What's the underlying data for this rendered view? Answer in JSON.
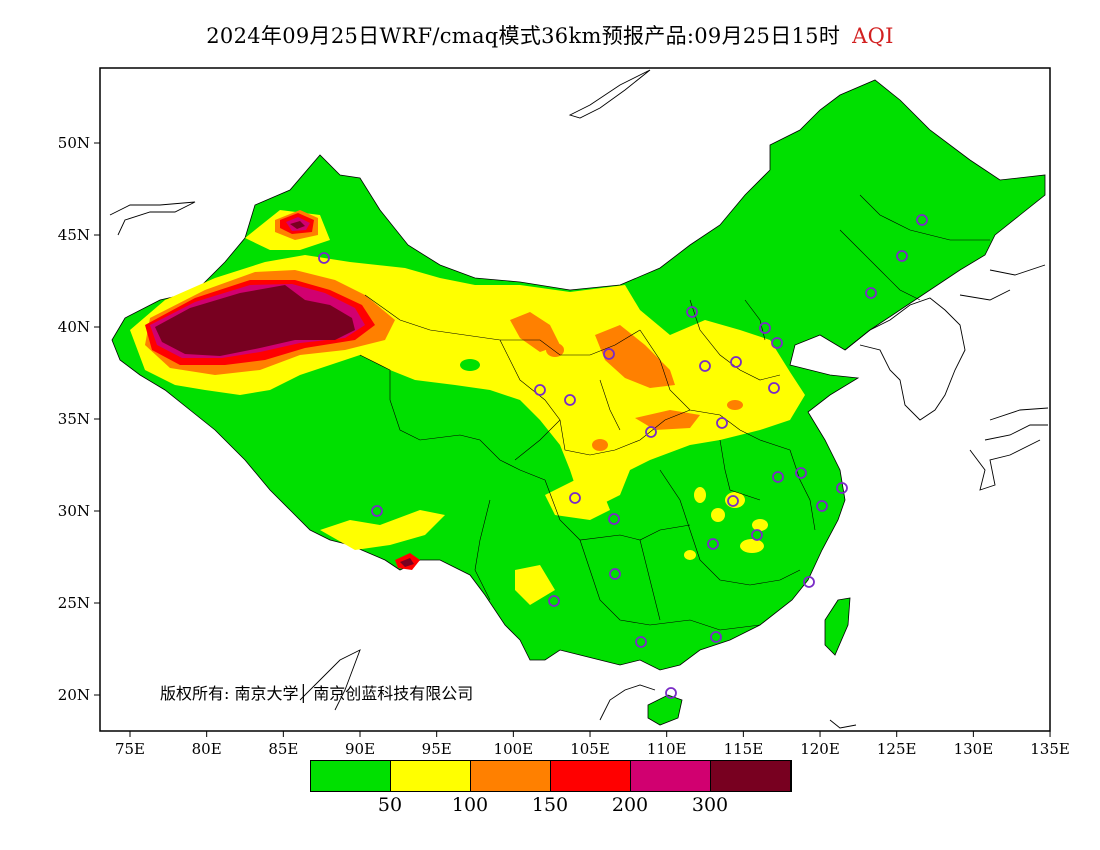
{
  "title": {
    "main": "2024年09月25日WRF/cmaq模式36km预报产品:09月25日15时",
    "tag": "AQI"
  },
  "axes": {
    "x_ticks": [
      "75E",
      "80E",
      "85E",
      "90E",
      "95E",
      "100E",
      "105E",
      "110E",
      "115E",
      "120E",
      "125E",
      "130E",
      "135E"
    ],
    "y_ticks": [
      "50N",
      "45N",
      "40N",
      "35N",
      "30N",
      "25N",
      "20N"
    ]
  },
  "copyright": "版权所有: 南京大学│ 南京创蓝科技有限公司",
  "legend": {
    "colors": [
      "#00e000",
      "#ffff00",
      "#ff8000",
      "#ff0000",
      "#d10070",
      "#780020"
    ],
    "labels": [
      "50",
      "100",
      "150",
      "200",
      "300"
    ]
  },
  "palette": {
    "good": "#00e000",
    "moderate": "#ffff00",
    "usg": "#ff8000",
    "unhealthy": "#ff0000",
    "very_unhealthy": "#d10070",
    "hazardous": "#780020",
    "city_marker": "#7a2cc6"
  }
}
